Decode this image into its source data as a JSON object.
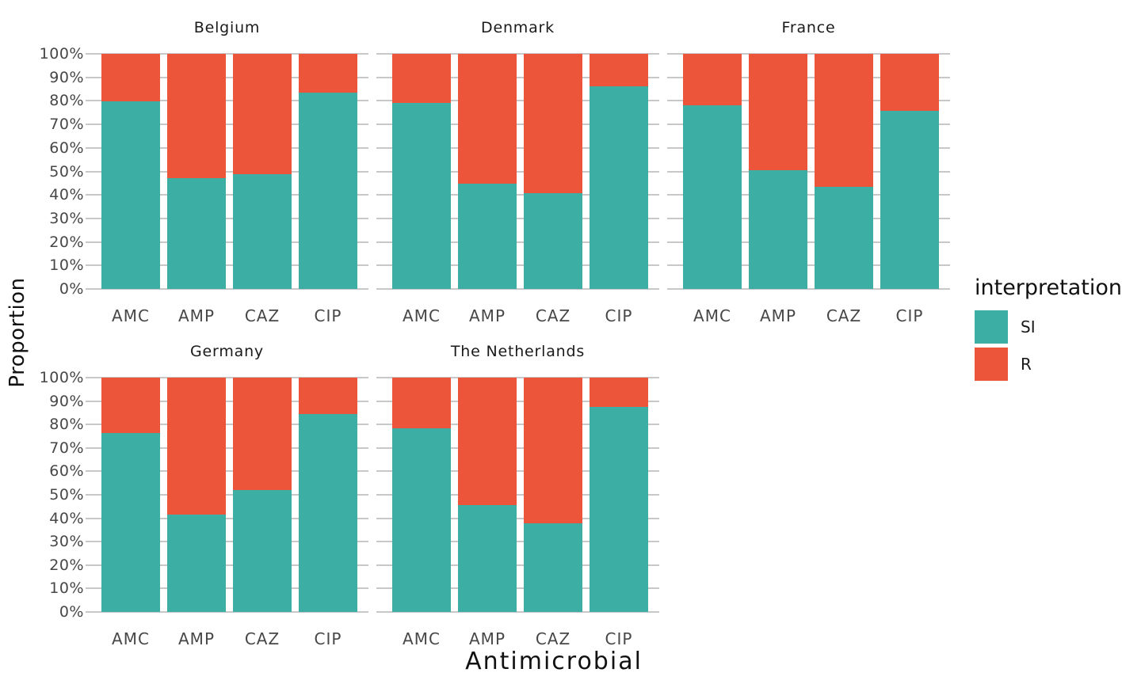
{
  "chart_data": {
    "type": "bar",
    "stacked": true,
    "normalized": "percent",
    "title": "",
    "xlabel": "Antimicrobial",
    "ylabel": "Proportion",
    "ylim": [
      0,
      100
    ],
    "grid": "horizontal",
    "legend_position": "right",
    "legend_title": "interpretation",
    "categories": [
      "AMC",
      "AMP",
      "CAZ",
      "CIP"
    ],
    "series": [
      {
        "name": "SI",
        "color": "#3CAEA3"
      },
      {
        "name": "R",
        "color": "#ED553B"
      }
    ],
    "y_tick_labels": [
      "0%",
      "10%",
      "20%",
      "30%",
      "40%",
      "50%",
      "60%",
      "70%",
      "80%",
      "90%",
      "100%"
    ],
    "facets": [
      {
        "title": "Belgium",
        "row": 0,
        "col": 0,
        "SI": [
          79.9,
          47.3,
          48.8,
          83.4
        ],
        "R": [
          20.1,
          52.7,
          51.2,
          16.6
        ]
      },
      {
        "title": "Denmark",
        "row": 0,
        "col": 1,
        "SI": [
          79.1,
          44.7,
          40.7,
          86.3
        ],
        "R": [
          20.9,
          55.3,
          59.3,
          13.7
        ]
      },
      {
        "title": "France",
        "row": 0,
        "col": 2,
        "SI": [
          78.2,
          50.5,
          43.6,
          75.9
        ],
        "R": [
          21.8,
          49.5,
          56.4,
          24.1
        ]
      },
      {
        "title": "Germany",
        "row": 1,
        "col": 0,
        "SI": [
          76.4,
          41.5,
          52.0,
          84.4
        ],
        "R": [
          23.6,
          58.5,
          48.0,
          15.6
        ]
      },
      {
        "title": "The Netherlands",
        "row": 1,
        "col": 1,
        "SI": [
          78.4,
          45.7,
          37.8,
          87.5
        ],
        "R": [
          21.6,
          54.3,
          62.2,
          12.5
        ]
      }
    ],
    "style_colors": {
      "gridline": "#C8C8C8",
      "tick_text": "#474747",
      "title_text": "#111111"
    }
  }
}
